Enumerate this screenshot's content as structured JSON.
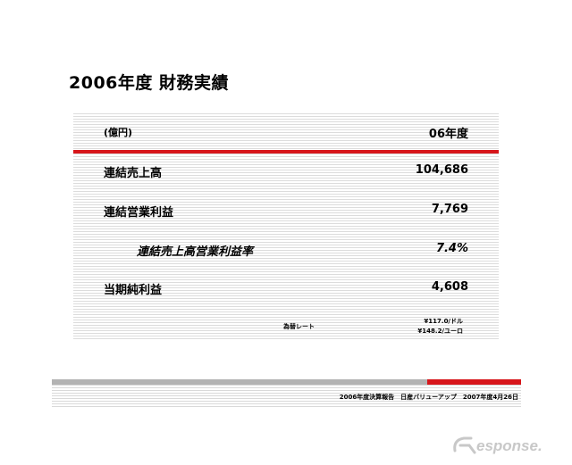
{
  "title": "2006年度 財務実績",
  "table": {
    "unit": "(億円)",
    "column_header": "06年度",
    "rows": [
      {
        "label": "連結売上高",
        "value": "104,686"
      },
      {
        "label": "連結営業利益",
        "value": "7,769"
      },
      {
        "label": "連結売上高営業利益率",
        "value": "7.4%"
      },
      {
        "label": "当期純利益",
        "value": "4,608"
      }
    ],
    "fx_label": "為替レート",
    "fx_usd": "¥117.0/ドル",
    "fx_eur": "¥148.2/ユーロ"
  },
  "footer": {
    "text": "2006年度決算報告　日産バリューアップ　2007年度4月26日"
  },
  "watermark": {
    "text": "Response."
  },
  "colors": {
    "accent_red": "#d7161b",
    "footer_gray": "#b3b3b3"
  }
}
